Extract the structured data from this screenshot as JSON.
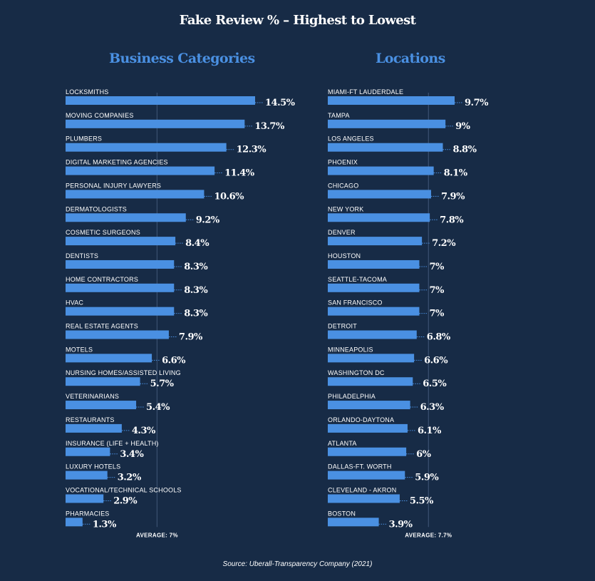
{
  "title": "Fake Review % – Highest to Lowest",
  "source": "Source: Uberall-Transparency Company (2021)",
  "colors": {
    "background": "#172b46",
    "bar": "#4a90e2",
    "accent": "#4a90e2",
    "text": "#ffffff",
    "average_line": "#3a5070"
  },
  "chart_data": [
    {
      "type": "bar",
      "orientation": "horizontal",
      "title": "Business Categories",
      "categories": [
        "LOCKSMITHS",
        "MOVING COMPANIES",
        "PLUMBERS",
        "DIGITAL MARKETING AGENCIES",
        "PERSONAL INJURY LAWYERS",
        "DERMATOLOGISTS",
        "COSMETIC SURGEONS",
        "DENTISTS",
        "HOME CONTRACTORS",
        "HVAC",
        "REAL ESTATE AGENTS",
        "MOTELS",
        "NURSING HOMES/ASSISTED LIVING",
        "VETERINARIANS",
        "RESTAURANTS",
        "INSURANCE (LIFE + HEALTH)",
        "LUXURY HOTELS",
        "VOCATIONAL/TECHNICAL SCHOOLS",
        "PHARMACIES"
      ],
      "values": [
        14.5,
        13.7,
        12.3,
        11.4,
        10.6,
        9.2,
        8.4,
        8.3,
        8.3,
        8.3,
        7.9,
        6.6,
        5.7,
        5.4,
        4.3,
        3.4,
        3.2,
        2.9,
        1.3
      ],
      "value_labels": [
        "14.5%",
        "13.7%",
        "12.3%",
        "11.4%",
        "10.6%",
        "9.2%",
        "8.4%",
        "8.3%",
        "8.3%",
        "8.3%",
        "7.9%",
        "6.6%",
        "5.7%",
        "5.4%",
        "4.3%",
        "3.4%",
        "3.2%",
        "2.9%",
        "1.3%"
      ],
      "average": 7,
      "average_label": "AVERAGE: 7%",
      "xlim": [
        0,
        14.5
      ]
    },
    {
      "type": "bar",
      "orientation": "horizontal",
      "title": "Locations",
      "categories": [
        "MIAMI-FT LAUDERDALE",
        "TAMPA",
        "LOS ANGELES",
        "PHOENIX",
        "CHICAGO",
        "NEW YORK",
        "DENVER",
        "HOUSTON",
        "SEATTLE-TACOMA",
        "SAN FRANCISCO",
        "DETROIT",
        "MINNEAPOLIS",
        "WASHINGTON DC",
        "PHILADELPHIA",
        "ORLANDO-DAYTONA",
        "ATLANTA",
        "DALLAS-FT. WORTH",
        "CLEVELAND - AKRON",
        "BOSTON"
      ],
      "values": [
        9.7,
        9,
        8.8,
        8.1,
        7.9,
        7.8,
        7.2,
        7,
        7,
        7,
        6.8,
        6.6,
        6.5,
        6.3,
        6.1,
        6,
        5.9,
        5.5,
        3.9
      ],
      "value_labels": [
        "9.7%",
        "9%",
        "8.8%",
        "8.1%",
        "7.9%",
        "7.8%",
        "7.2%",
        "7%",
        "7%",
        "7%",
        "6.8%",
        "6.6%",
        "6.5%",
        "6.3%",
        "6.1%",
        "6%",
        "5.9%",
        "5.5%",
        "3.9%"
      ],
      "average": 7.7,
      "average_label": "AVERAGE: 7.7%",
      "xlim": [
        0,
        9.7
      ]
    }
  ]
}
